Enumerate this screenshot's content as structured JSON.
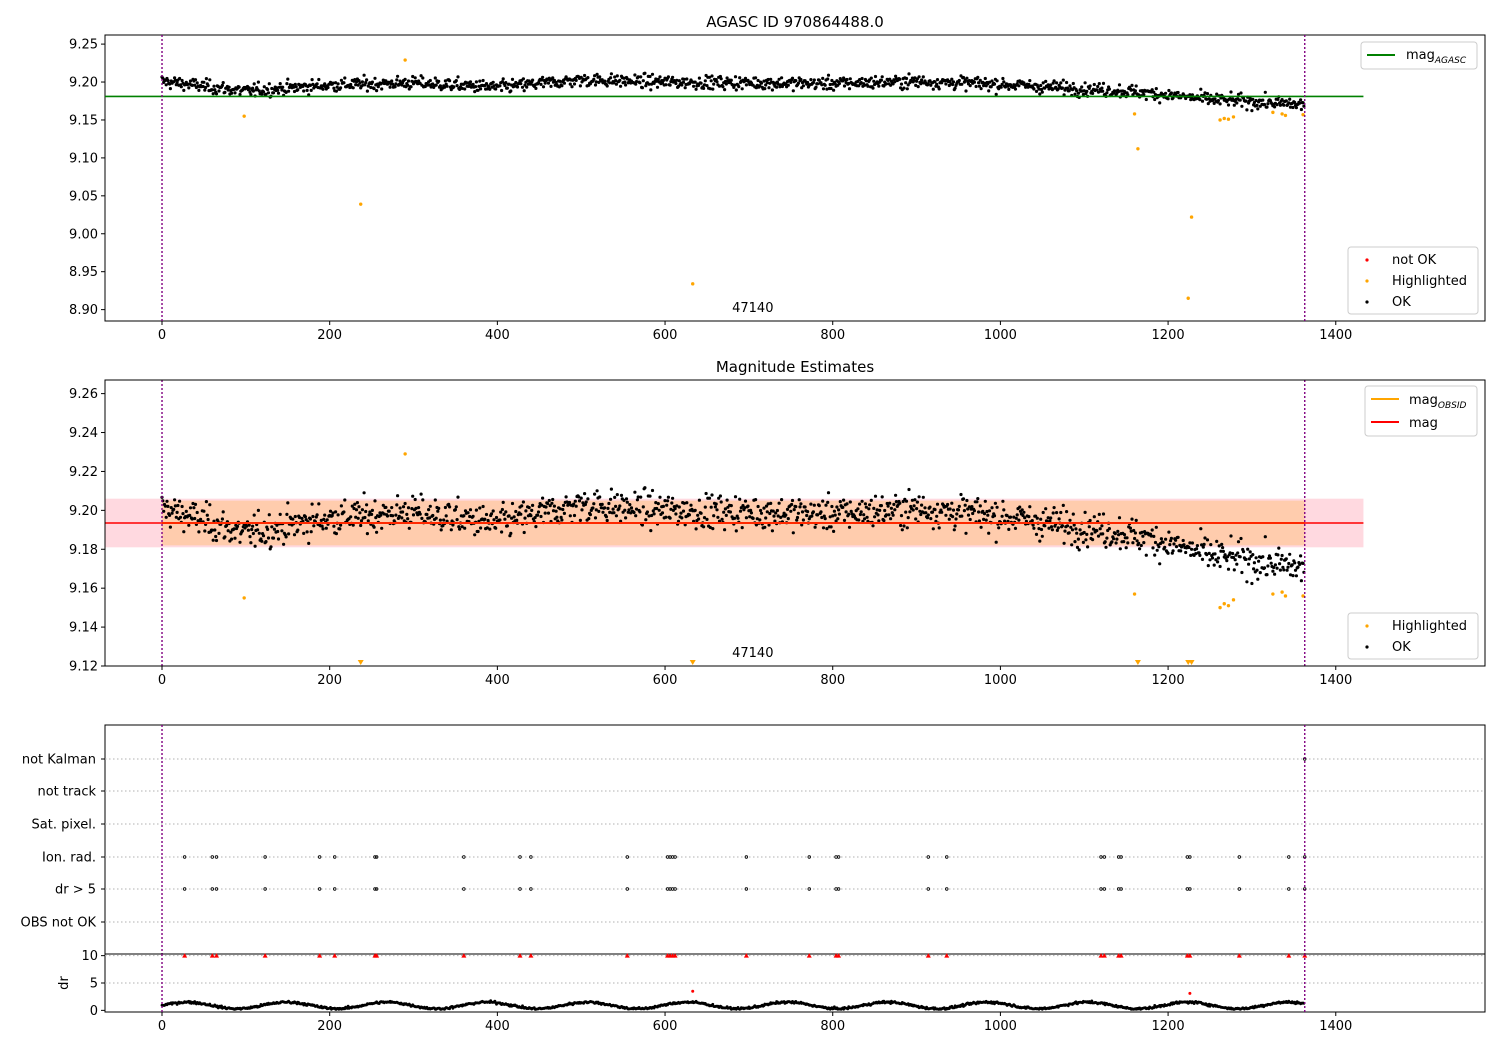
{
  "colors": {
    "ok": "#000000",
    "highlighted": "#ffa500",
    "not_ok": "#ff0000",
    "mag_agasc": "#008000",
    "mag_obsid": "#ffa500",
    "mag": "#ff0000",
    "band_obs": "#ffc8a0",
    "band_mag": "#ffc0cb",
    "vline": "#800080"
  },
  "chart_data": [
    {
      "type": "scatter",
      "title": "AGASC ID 970864488.0",
      "xlim": [
        -68,
        1578
      ],
      "ylim": [
        8.885,
        9.262
      ],
      "xticks": [
        0,
        200,
        400,
        600,
        800,
        1000,
        1200,
        1400
      ],
      "yticks": [
        "8.90",
        "8.95",
        "9.00",
        "9.05",
        "9.10",
        "9.15",
        "9.20",
        "9.25"
      ],
      "vlines": [
        0,
        1363
      ],
      "annotation": "47140",
      "annotation_x": 680,
      "mag_agasc": {
        "value": 9.181,
        "x_range": [
          -68,
          1433
        ]
      },
      "ok_trend": {
        "x": [
          0,
          100,
          200,
          300,
          400,
          500,
          600,
          700,
          800,
          900,
          1000,
          1100,
          1150,
          1200,
          1250,
          1300,
          1363
        ],
        "y": [
          9.201,
          9.188,
          9.196,
          9.199,
          9.193,
          9.203,
          9.2,
          9.199,
          9.198,
          9.201,
          9.197,
          9.191,
          9.188,
          9.183,
          9.177,
          9.174,
          9.17
        ],
        "scatter": 0.011,
        "n": 1363
      },
      "highlighted": {
        "x": [
          98,
          237,
          290,
          633,
          1160,
          1164,
          1224,
          1228,
          1262,
          1267,
          1272,
          1278,
          1325,
          1336,
          1340,
          1361
        ],
        "y": [
          9.155,
          9.039,
          9.229,
          8.934,
          9.158,
          9.112,
          8.915,
          9.022,
          9.15,
          9.152,
          9.151,
          9.154,
          9.16,
          9.158,
          9.156,
          9.157
        ]
      },
      "legend_lines": [
        {
          "label": "mag",
          "sub": "AGASC",
          "color": "#008000"
        }
      ],
      "legend_points": [
        {
          "label": "not OK",
          "color": "#ff0000"
        },
        {
          "label": "Highlighted",
          "color": "#ffa500"
        },
        {
          "label": "OK",
          "color": "#000000"
        }
      ]
    },
    {
      "type": "scatter",
      "title": "Magnitude Estimates",
      "xlim": [
        -68,
        1578
      ],
      "ylim": [
        9.12,
        9.267
      ],
      "xticks": [
        0,
        200,
        400,
        600,
        800,
        1000,
        1200,
        1400
      ],
      "yticks": [
        "9.12",
        "9.14",
        "9.16",
        "9.18",
        "9.20",
        "9.22",
        "9.24",
        "9.26"
      ],
      "vlines": [
        0,
        1363
      ],
      "annotation": "47140",
      "annotation_x": 680,
      "mag": {
        "value": 9.1935,
        "band": [
          9.181,
          9.206
        ],
        "x_range": [
          -68,
          1433
        ]
      },
      "mag_obsid": {
        "value": 9.1935,
        "band": [
          9.182,
          9.205
        ],
        "x_range": [
          0,
          1363
        ]
      },
      "highlighted": {
        "x": [
          98,
          290,
          1160,
          1262,
          1267,
          1272,
          1278,
          1325,
          1336,
          1340,
          1361
        ],
        "y": [
          9.155,
          9.229,
          9.157,
          9.15,
          9.152,
          9.151,
          9.154,
          9.157,
          9.158,
          9.156,
          9.156
        ]
      },
      "below_range_markers": [
        237,
        633,
        1164,
        1224,
        1228
      ],
      "legend_lines": [
        {
          "label": "mag",
          "sub": "OBSID",
          "color": "#ffa500"
        },
        {
          "label": "mag",
          "sub": "",
          "color": "#ff0000"
        }
      ],
      "legend_points": [
        {
          "label": "Highlighted",
          "color": "#ffa500"
        },
        {
          "label": "OK",
          "color": "#000000"
        }
      ]
    },
    {
      "type": "scatter",
      "title": "",
      "categories": [
        "not Kalman",
        "not track",
        "Sat. pixel.",
        "Ion. rad.",
        "dr > 5",
        "OBS not OK"
      ],
      "flag_x": [
        27,
        60,
        65,
        123,
        188,
        206,
        254,
        256,
        360,
        427,
        440,
        555,
        603,
        606,
        609,
        612,
        697,
        772,
        804,
        807,
        914,
        936,
        1120,
        1124,
        1141,
        1144,
        1223,
        1226,
        1285,
        1344,
        1363
      ],
      "not_kalman_x": [
        1363
      ]
    },
    {
      "type": "scatter",
      "title": "",
      "ylabel": "dr",
      "yticks": [
        "0",
        "5",
        "10"
      ],
      "ylim": [
        -0.3,
        10.3
      ],
      "xlim": [
        -68,
        1578
      ],
      "xticks": [
        0,
        200,
        400,
        600,
        800,
        1000,
        1200,
        1400
      ],
      "clipped_value": 10,
      "outliers": {
        "x": [
          633,
          1226
        ],
        "y": [
          3.5,
          3.1
        ]
      }
    }
  ]
}
